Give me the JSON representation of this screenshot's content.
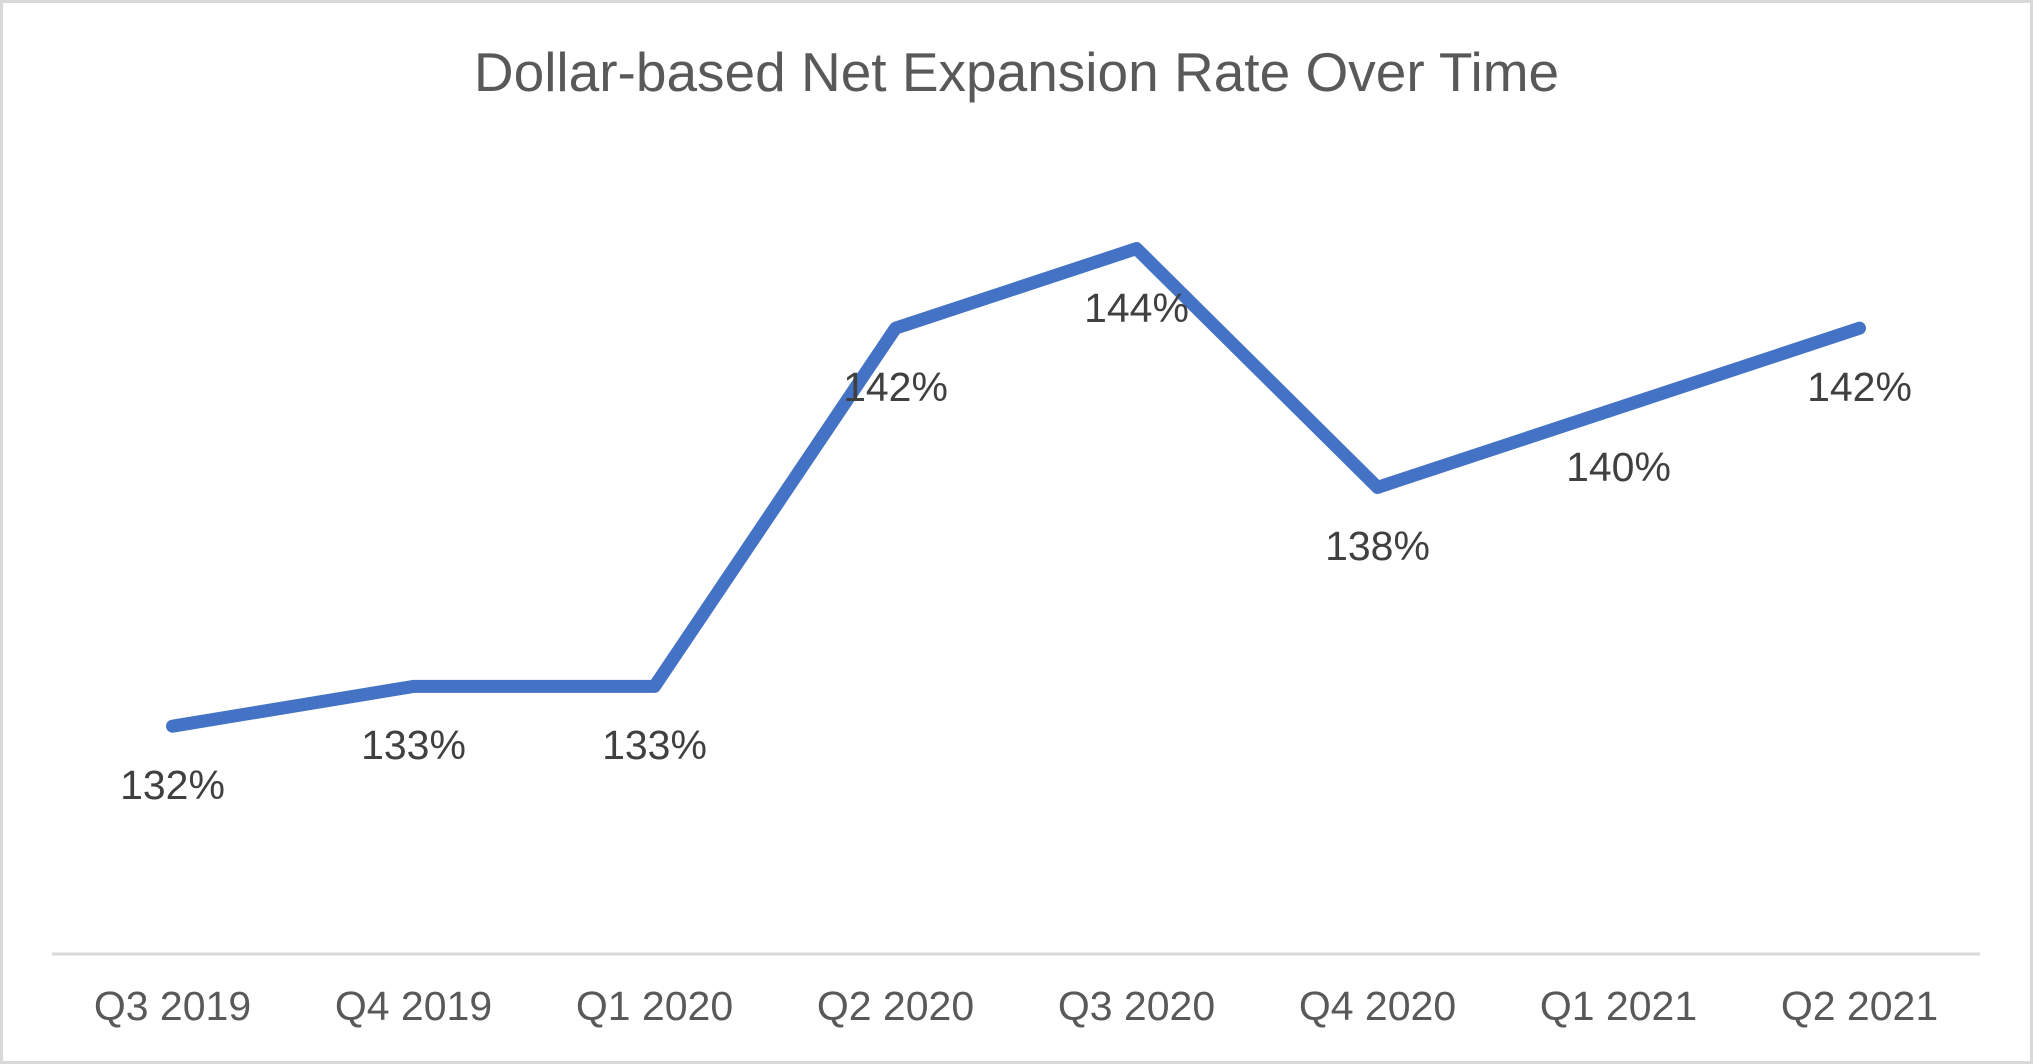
{
  "window": {
    "background_color": "#ffffff",
    "border_color": "#d9d9d9"
  },
  "chart_data": {
    "type": "line",
    "title": "Dollar-based Net Expansion Rate Over Time",
    "categories": [
      "Q3 2019",
      "Q4 2019",
      "Q1 2020",
      "Q2 2020",
      "Q3 2020",
      "Q4 2020",
      "Q1 2021",
      "Q2 2021"
    ],
    "values": [
      132,
      133,
      133,
      142,
      144,
      138,
      140,
      142
    ],
    "data_labels": [
      "132%",
      "133%",
      "133%",
      "142%",
      "144%",
      "138%",
      "140%",
      "142%"
    ],
    "xlabel": "",
    "ylabel": "",
    "ylim": [
      126,
      146
    ],
    "grid": false,
    "legend": "none",
    "y_axis_visible": false,
    "data_label_position": "below",
    "line_color": "#4472C4",
    "axis_line_color": "#D9D9D9",
    "title_color": "#595959",
    "label_color": "#404040",
    "tick_color": "#595959"
  }
}
